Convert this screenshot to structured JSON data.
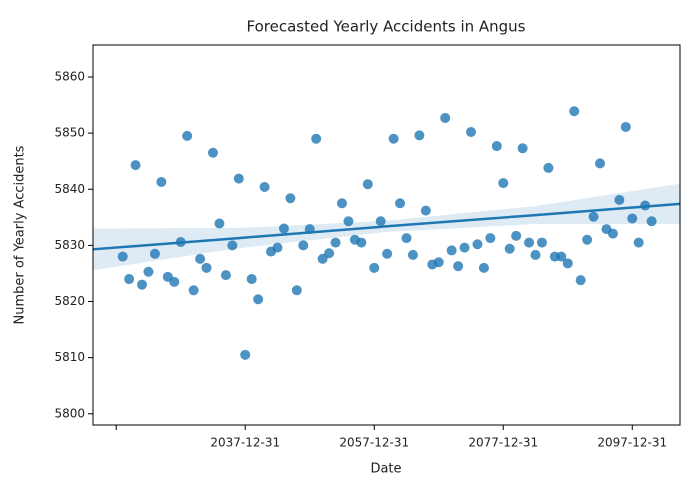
{
  "chart_data": {
    "type": "scatter",
    "title": "Forecasted Yearly Accidents in Angus",
    "x_label": "Date",
    "y_label": "Number of Yearly Accidents",
    "x": [
      2019,
      2020,
      2021,
      2022,
      2023,
      2024,
      2025,
      2026,
      2027,
      2028,
      2029,
      2030,
      2031,
      2032,
      2033,
      2034,
      2035,
      2036,
      2037,
      2038,
      2039,
      2040,
      2041,
      2042,
      2043,
      2044,
      2045,
      2046,
      2047,
      2048,
      2049,
      2050,
      2051,
      2052,
      2053,
      2054,
      2055,
      2056,
      2057,
      2058,
      2059,
      2060,
      2061,
      2062,
      2063,
      2064,
      2065,
      2066,
      2067,
      2068,
      2069,
      2070,
      2071,
      2072,
      2073,
      2074,
      2075,
      2076,
      2077,
      2078,
      2079,
      2080,
      2081,
      2082,
      2083,
      2084,
      2085,
      2086,
      2087,
      2088,
      2089,
      2090,
      2091,
      2092,
      2093,
      2094,
      2095,
      2096,
      2097,
      2098,
      2099,
      2100,
      2101
    ],
    "values": [
      5828.0,
      5824.0,
      5844.3,
      5823.0,
      5825.3,
      5828.5,
      5841.3,
      5824.4,
      5823.5,
      5830.6,
      5849.5,
      5822.0,
      5827.6,
      5826.0,
      5846.5,
      5833.9,
      5824.7,
      5830.0,
      5841.9,
      5810.5,
      5824.0,
      5820.4,
      5840.4,
      5828.9,
      5829.6,
      5833.0,
      5838.4,
      5822.0,
      5830.0,
      5832.9,
      5849.0,
      5827.6,
      5828.6,
      5830.5,
      5837.5,
      5834.3,
      5831.0,
      5830.5,
      5840.9,
      5826.0,
      5834.3,
      5828.5,
      5849.0,
      5837.5,
      5831.3,
      5828.3,
      5849.6,
      5836.2,
      5826.6,
      5827.0,
      5852.7,
      5829.1,
      5826.3,
      5829.6,
      5850.2,
      5830.2,
      5826.0,
      5831.3,
      5847.7,
      5841.1,
      5829.4,
      5831.7,
      5847.3,
      5830.5,
      5828.3,
      5830.5,
      5843.8,
      5828.0,
      5828.0,
      5826.8,
      5853.9,
      5823.8,
      5831.0,
      5835.1,
      5844.6,
      5832.9,
      5832.1,
      5838.1,
      5851.1,
      5834.8,
      5830.5,
      5837.1,
      5834.3
    ],
    "color": "#1f77b4",
    "trend": {
      "x": [
        2014.4,
        2037,
        2060,
        2083,
        2105.4
      ],
      "y": [
        5829.3,
        5831.3,
        5833.4,
        5835.4,
        5837.4
      ],
      "lower": [
        5825.6,
        5829.5,
        5832.4,
        5833.8,
        5833.8
      ],
      "upper": [
        5833.0,
        5833.1,
        5834.4,
        5837.0,
        5841.0
      ]
    },
    "xlim": [
      2014.4,
      2105.4
    ],
    "ylim": [
      5798,
      5865.7
    ],
    "xticks": [
      {
        "value": 2018,
        "label": null
      },
      {
        "value": 2038,
        "label": "2037-12-31"
      },
      {
        "value": 2058,
        "label": "2057-12-31"
      },
      {
        "value": 2078,
        "label": "2077-12-31"
      },
      {
        "value": 2098,
        "label": "2097-12-31"
      }
    ],
    "yticks": [
      5800,
      5810,
      5820,
      5830,
      5840,
      5850,
      5860
    ]
  }
}
